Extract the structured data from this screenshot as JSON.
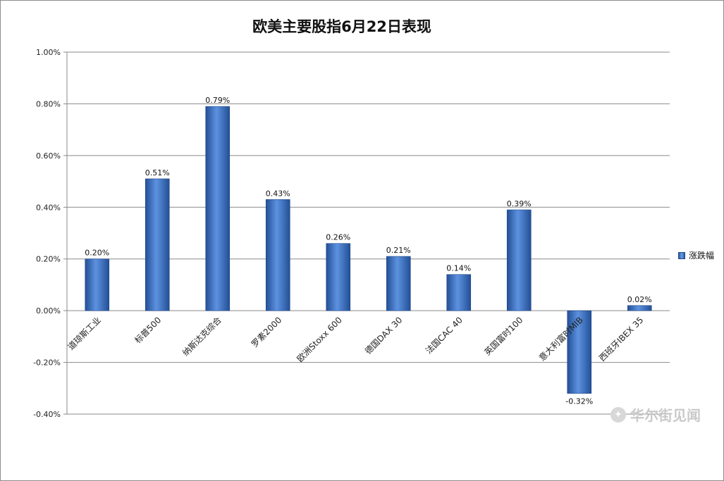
{
  "chart_data": {
    "type": "bar",
    "title": "欧美主要股指6月22日表现",
    "categories": [
      "道琼斯工业",
      "标普500",
      "纳斯达克综合",
      "罗素2000",
      "欧洲Stoxx 600",
      "德国DAX 30",
      "法国CAC 40",
      "英国富时100",
      "意大利富时MIB",
      "西班牙IBEX 35"
    ],
    "series": [
      {
        "name": "涨跌幅",
        "values": [
          0.2,
          0.51,
          0.79,
          0.43,
          0.26,
          0.21,
          0.14,
          0.39,
          -0.32,
          0.02
        ]
      }
    ],
    "data_labels": [
      "0.20%",
      "0.51%",
      "0.79%",
      "0.43%",
      "0.26%",
      "0.21%",
      "0.14%",
      "0.39%",
      "-0.32%",
      "0.02%"
    ],
    "yticks": [
      "1.00%",
      "0.80%",
      "0.60%",
      "0.40%",
      "0.20%",
      "0.00%",
      "-0.20%",
      "-0.40%"
    ],
    "ytick_values": [
      1.0,
      0.8,
      0.6,
      0.4,
      0.2,
      0.0,
      -0.2,
      -0.4
    ],
    "ylim": [
      -0.4,
      1.0
    ],
    "xlabel": "",
    "ylabel": "",
    "grid": true,
    "legend_position": "right",
    "bar_color": "#3a6fc4"
  },
  "watermark": {
    "text": "华尔街见闻"
  }
}
